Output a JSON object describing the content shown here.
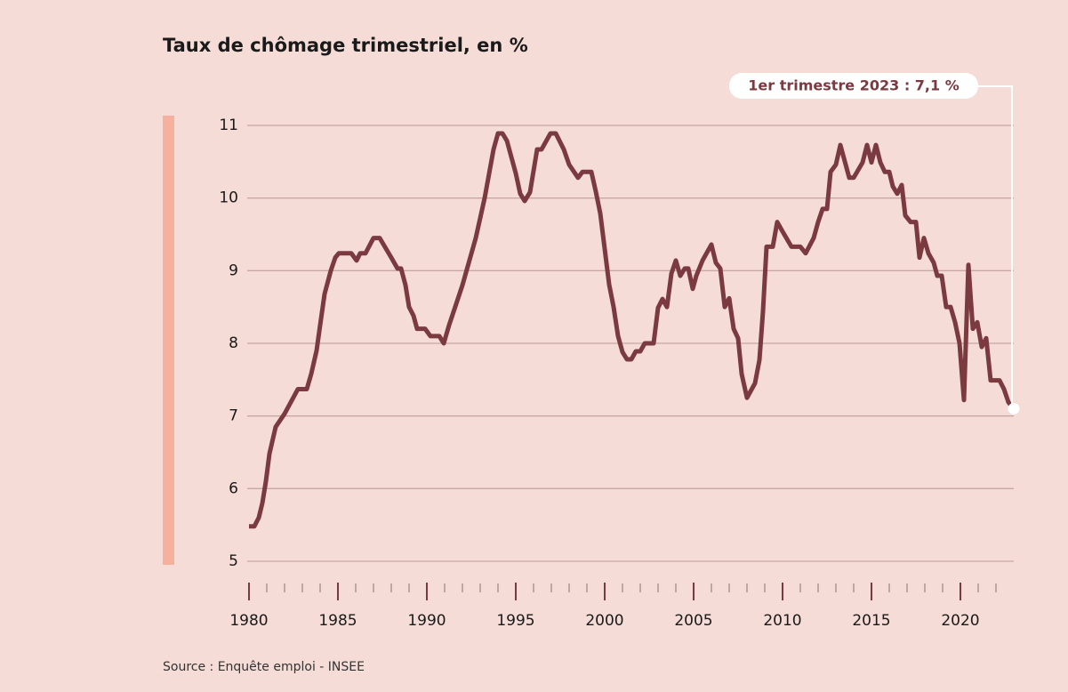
{
  "chart_data": {
    "type": "line",
    "title": "Taux de chômage trimestriel, en %",
    "source": "Source : Enquête emploi - INSEE",
    "annotation": "1er trimestre 2023 : 7,1 %",
    "x": [
      1980,
      1980.3,
      1980.55,
      1980.75,
      1980.95,
      1981.15,
      1981.5,
      1982,
      1982.75,
      1983.25,
      1983.5,
      1983.8,
      1984,
      1984.25,
      1984.6,
      1984.85,
      1985.05,
      1985.75,
      1986.05,
      1986.25,
      1986.55,
      1987,
      1987.35,
      1988,
      1988.35,
      1988.55,
      1988.8,
      1989,
      1989.25,
      1989.45,
      1989.9,
      1990.2,
      1990.7,
      1990.95,
      1991.25,
      1992,
      1992.75,
      1993.25,
      1993.75,
      1994,
      1994.25,
      1994.5,
      1995,
      1995.25,
      1995.5,
      1995.8,
      1996.2,
      1996.45,
      1996.95,
      1997.25,
      1997.7,
      1998,
      1998.5,
      1998.75,
      1999.25,
      1999.5,
      1999.75,
      2000.25,
      2000.5,
      2000.75,
      2001,
      2001.25,
      2001.5,
      2001.75,
      2002,
      2002.25,
      2002.75,
      2003,
      2003.25,
      2003.5,
      2003.75,
      2004,
      2004.25,
      2004.5,
      2004.7,
      2004.95,
      2005.15,
      2005.5,
      2006,
      2006.25,
      2006.5,
      2006.75,
      2007,
      2007.25,
      2007.5,
      2007.7,
      2008,
      2008.45,
      2008.7,
      2008.9,
      2009.1,
      2009.45,
      2009.7,
      2010,
      2010.5,
      2011,
      2011.3,
      2011.75,
      2012,
      2012.25,
      2012.5,
      2012.7,
      2013,
      2013.25,
      2013.75,
      2014,
      2014.5,
      2014.75,
      2015,
      2015.25,
      2015.5,
      2015.75,
      2016,
      2016.2,
      2016.45,
      2016.7,
      2016.9,
      2017.2,
      2017.5,
      2017.7,
      2017.95,
      2018.2,
      2018.5,
      2018.7,
      2018.95,
      2019.2,
      2019.45,
      2019.7,
      2019.95,
      2020.2,
      2020.45,
      2020.7,
      2020.95,
      2021.2,
      2021.45,
      2021.7,
      2022.2,
      2022.45,
      2022.7,
      2023
    ],
    "values": [
      5.48,
      5.48,
      5.6,
      5.8,
      6.1,
      6.48,
      6.85,
      7.03,
      7.37,
      7.37,
      7.58,
      7.9,
      8.25,
      8.68,
      9.0,
      9.18,
      9.24,
      9.24,
      9.14,
      9.24,
      9.24,
      9.45,
      9.45,
      9.18,
      9.03,
      9.03,
      8.8,
      8.5,
      8.38,
      8.2,
      8.2,
      8.1,
      8.1,
      8.0,
      8.25,
      8.8,
      9.45,
      10.0,
      10.67,
      10.89,
      10.89,
      10.79,
      10.34,
      10.06,
      9.96,
      10.08,
      10.67,
      10.67,
      10.89,
      10.89,
      10.67,
      10.46,
      10.28,
      10.36,
      10.36,
      10.09,
      9.79,
      8.81,
      8.5,
      8.1,
      7.88,
      7.78,
      7.78,
      7.89,
      7.89,
      8.0,
      8.0,
      8.49,
      8.61,
      8.5,
      8.96,
      9.14,
      8.93,
      9.03,
      9.03,
      8.75,
      8.93,
      9.14,
      9.36,
      9.11,
      9.03,
      8.5,
      8.62,
      8.2,
      8.07,
      7.58,
      7.25,
      7.45,
      7.77,
      8.44,
      9.33,
      9.33,
      9.67,
      9.54,
      9.33,
      9.33,
      9.24,
      9.45,
      9.67,
      9.85,
      9.85,
      10.36,
      10.46,
      10.73,
      10.28,
      10.28,
      10.49,
      10.73,
      10.49,
      10.73,
      10.49,
      10.36,
      10.36,
      10.16,
      10.06,
      10.18,
      9.76,
      9.67,
      9.67,
      9.18,
      9.45,
      9.24,
      9.11,
      8.93,
      8.93,
      8.5,
      8.5,
      8.29,
      8.0,
      7.22,
      9.08,
      8.2,
      8.29,
      7.95,
      8.07,
      7.49,
      7.49,
      7.37,
      7.19,
      7.1
    ],
    "color": "#7b3a40",
    "xlim": [
      1980,
      2023
    ],
    "xticks": [
      1980,
      1985,
      1990,
      1995,
      2000,
      2005,
      2010,
      2015,
      2020
    ],
    "xticks_minor": [
      1981,
      1982,
      1983,
      1984,
      1986,
      1987,
      1988,
      1989,
      1991,
      1992,
      1993,
      1994,
      1996,
      1997,
      1998,
      1999,
      2001,
      2002,
      2003,
      2004,
      2006,
      2007,
      2008,
      2009,
      2011,
      2012,
      2013,
      2014,
      2016,
      2017,
      2018,
      2019,
      2021,
      2022
    ],
    "ylim": [
      5,
      11
    ],
    "yticks": [
      5,
      6,
      7,
      8,
      9,
      10,
      11
    ],
    "grid": true
  }
}
